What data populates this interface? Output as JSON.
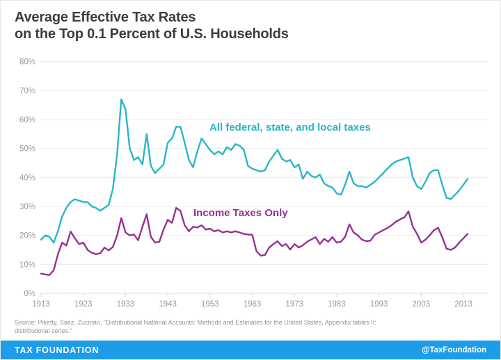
{
  "header": {
    "title_line1": "Average Effective Tax Rates",
    "title_line2": "on the Top 0.1 Percent of U.S. Households"
  },
  "source": {
    "line1": "Source: Piketty, Saez, Zucman, \"Distributional National Accounts: Methods and Estimates for the United States, Appendix tables II:",
    "line2": "distributional series.\""
  },
  "footer": {
    "brand": "TAX FOUNDATION",
    "handle": "@TaxFoundation",
    "bar_color": "#1e9ce9"
  },
  "colors": {
    "all_taxes_line": "#2ab6c5",
    "income_taxes_line": "#953291",
    "title_text": "#3d3d3d",
    "axis_text": "#9b9b9b",
    "gridline": "#ebebeb"
  },
  "chart_data": {
    "type": "line",
    "title": "Average Effective Tax Rates on the Top 0.1 Percent of U.S. Households",
    "xlabel": "",
    "ylabel": "",
    "grid": true,
    "legend": "inline-labels",
    "x_start": 1913,
    "x_end": 2014,
    "x_step": 1,
    "ylim": [
      0,
      80
    ],
    "y_ticks": [
      "0%",
      "10%",
      "20%",
      "30%",
      "40%",
      "50%",
      "60%",
      "70%",
      "80%"
    ],
    "x_ticks": [
      "1913",
      "1923",
      "1933",
      "1943",
      "1953",
      "1963",
      "1973",
      "1983",
      "1993",
      "2003",
      "2013"
    ],
    "series": [
      {
        "name": "All federal, state, and local taxes",
        "color": "#2ab6c5",
        "values": [
          18.5,
          20,
          19.5,
          17.5,
          21.5,
          26.5,
          29.5,
          31.5,
          32.5,
          32,
          31.5,
          31.5,
          30,
          29.5,
          28.5,
          29.5,
          30.5,
          36,
          48,
          67,
          63.5,
          50,
          46,
          47,
          44.5,
          55,
          44,
          41.5,
          43,
          44.5,
          52,
          53.5,
          57.5,
          57.5,
          52,
          46,
          43.5,
          49,
          53.5,
          51.5,
          49.5,
          48,
          49,
          48,
          50.5,
          49.5,
          51.5,
          51,
          49.5,
          44,
          43,
          42.5,
          42,
          42.5,
          45.5,
          47.5,
          49.5,
          46.5,
          45.5,
          46,
          43.5,
          44.5,
          39.5,
          42,
          40.5,
          40,
          41,
          38,
          37,
          36.5,
          34.5,
          34,
          37.5,
          42,
          38,
          37,
          37,
          36.5,
          37.5,
          38.5,
          40,
          41.5,
          43,
          44.5,
          45.5,
          46,
          46.5,
          47,
          40,
          37,
          36,
          38.5,
          41.5,
          42.5,
          42.5,
          37.5,
          33,
          32.5,
          34,
          35.5,
          37.5,
          39.5
        ]
      },
      {
        "name": "Income Taxes Only",
        "color": "#953291",
        "values": [
          6.8,
          6.5,
          6.3,
          8,
          13.5,
          17.5,
          16.5,
          21.3,
          19,
          17,
          17.5,
          15,
          14,
          13.5,
          13.8,
          15.8,
          14.8,
          16,
          20,
          26,
          21,
          20,
          20.3,
          18.3,
          23,
          27.3,
          19.5,
          17.5,
          17.8,
          22,
          25.4,
          24.3,
          29.5,
          28.5,
          23.5,
          21.4,
          23,
          22.7,
          23.5,
          22,
          22.3,
          21.4,
          21.8,
          21,
          21.4,
          21,
          21.4,
          21,
          20.5,
          20.3,
          20.2,
          14.5,
          13,
          13.2,
          15.8,
          17,
          18,
          16.3,
          17,
          15.1,
          17,
          15.8,
          16.6,
          17.8,
          18.6,
          19.4,
          17,
          18.8,
          17.8,
          19.4,
          17.5,
          17.8,
          19.5,
          23.8,
          21,
          20,
          18.5,
          18,
          18.2,
          20.2,
          21,
          21.8,
          22.5,
          23.5,
          24.7,
          25.5,
          26.2,
          28.3,
          23,
          20.6,
          17.5,
          18.5,
          20,
          21.8,
          22.6,
          19.4,
          15.4,
          15,
          15.8,
          17.5,
          19,
          20.5
        ]
      }
    ]
  }
}
